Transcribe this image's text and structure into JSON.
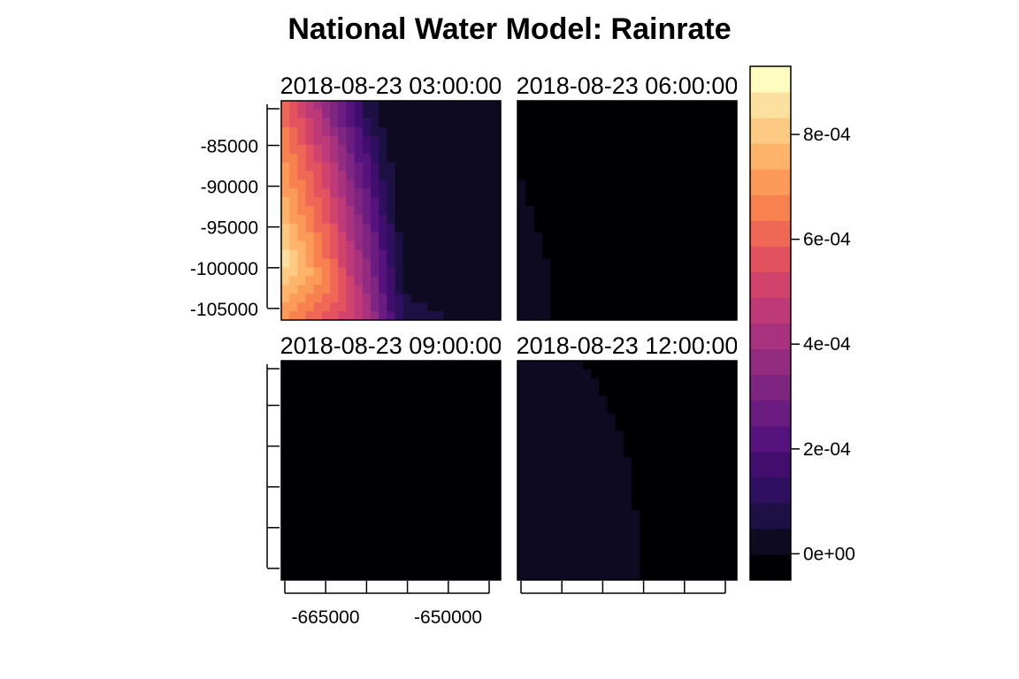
{
  "chart_data": {
    "type": "heatmap",
    "title": "National Water Model: Rainrate",
    "panels": [
      {
        "label": "2018-08-23 03:00:00",
        "visible_label": "018-08-23 03:00:0",
        "grid_levels": [
          [
            13,
            12,
            11,
            10,
            9,
            8,
            7,
            6,
            5,
            4,
            2,
            2,
            1,
            1,
            1,
            1,
            1,
            1,
            1,
            1,
            1,
            1,
            1,
            1,
            1,
            1,
            1
          ],
          [
            13,
            12,
            11,
            10,
            10,
            8,
            7,
            6,
            5,
            4,
            2,
            2,
            1,
            1,
            1,
            1,
            1,
            1,
            1,
            1,
            1,
            1,
            1,
            1,
            1,
            1,
            1
          ],
          [
            13,
            12,
            12,
            11,
            10,
            9,
            7,
            6,
            5,
            4,
            3,
            2,
            1,
            1,
            1,
            1,
            1,
            1,
            1,
            1,
            1,
            1,
            1,
            1,
            1,
            1,
            1
          ],
          [
            14,
            13,
            12,
            11,
            10,
            9,
            8,
            7,
            6,
            5,
            3,
            2,
            2,
            1,
            1,
            1,
            1,
            1,
            1,
            1,
            1,
            1,
            1,
            1,
            1,
            1,
            1
          ],
          [
            14,
            13,
            12,
            11,
            10,
            10,
            9,
            7,
            6,
            5,
            4,
            3,
            2,
            1,
            1,
            1,
            1,
            1,
            1,
            1,
            1,
            1,
            1,
            1,
            1,
            1,
            1
          ],
          [
            14,
            13,
            13,
            12,
            11,
            10,
            9,
            8,
            6,
            5,
            4,
            3,
            2,
            1,
            1,
            1,
            1,
            1,
            1,
            1,
            1,
            1,
            1,
            1,
            1,
            1,
            1
          ],
          [
            14,
            14,
            13,
            12,
            11,
            10,
            9,
            8,
            7,
            5,
            5,
            3,
            2,
            1,
            1,
            1,
            1,
            1,
            1,
            1,
            1,
            1,
            1,
            1,
            1,
            1,
            1
          ],
          [
            15,
            14,
            13,
            12,
            12,
            11,
            10,
            8,
            7,
            6,
            5,
            4,
            2,
            2,
            1,
            1,
            1,
            1,
            1,
            1,
            1,
            1,
            1,
            1,
            1,
            1,
            1
          ],
          [
            15,
            14,
            13,
            13,
            12,
            11,
            10,
            9,
            7,
            6,
            5,
            4,
            2,
            2,
            1,
            1,
            1,
            1,
            1,
            1,
            1,
            1,
            1,
            1,
            1,
            1,
            1
          ],
          [
            15,
            14,
            14,
            13,
            12,
            11,
            10,
            9,
            8,
            6,
            5,
            4,
            3,
            2,
            1,
            1,
            1,
            1,
            1,
            1,
            1,
            1,
            1,
            1,
            1,
            1,
            1
          ],
          [
            15,
            15,
            14,
            13,
            12,
            12,
            10,
            9,
            8,
            7,
            6,
            4,
            3,
            2,
            1,
            1,
            1,
            1,
            1,
            1,
            1,
            1,
            1,
            1,
            1,
            1,
            1
          ],
          [
            16,
            15,
            14,
            13,
            13,
            12,
            11,
            10,
            8,
            7,
            6,
            5,
            3,
            2,
            1,
            1,
            1,
            1,
            1,
            1,
            1,
            1,
            1,
            1,
            1,
            1,
            1
          ],
          [
            16,
            15,
            14,
            14,
            13,
            12,
            11,
            10,
            9,
            7,
            6,
            5,
            3,
            2,
            1,
            1,
            1,
            1,
            1,
            1,
            1,
            1,
            1,
            1,
            1,
            1,
            1
          ],
          [
            16,
            15,
            15,
            14,
            13,
            12,
            11,
            10,
            9,
            8,
            6,
            5,
            4,
            2,
            1,
            1,
            1,
            1,
            1,
            1,
            1,
            1,
            1,
            1,
            1,
            1,
            1
          ],
          [
            17,
            16,
            15,
            14,
            13,
            13,
            12,
            10,
            9,
            8,
            7,
            5,
            4,
            3,
            1,
            1,
            1,
            1,
            1,
            1,
            1,
            1,
            1,
            1,
            1,
            1,
            1
          ],
          [
            17,
            16,
            15,
            15,
            14,
            13,
            12,
            11,
            9,
            8,
            7,
            6,
            4,
            3,
            2,
            1,
            1,
            1,
            1,
            1,
            1,
            1,
            1,
            1,
            1,
            1,
            1
          ],
          [
            17,
            16,
            16,
            15,
            14,
            13,
            12,
            11,
            10,
            8,
            7,
            6,
            4,
            3,
            2,
            1,
            1,
            1,
            1,
            1,
            1,
            1,
            1,
            1,
            1,
            1,
            1
          ],
          [
            18,
            17,
            16,
            15,
            14,
            13,
            12,
            11,
            10,
            9,
            7,
            6,
            5,
            3,
            2,
            1,
            1,
            1,
            1,
            1,
            1,
            1,
            1,
            1,
            1,
            1,
            1
          ],
          [
            18,
            17,
            16,
            15,
            14,
            14,
            13,
            11,
            10,
            9,
            8,
            6,
            5,
            3,
            2,
            1,
            1,
            1,
            1,
            1,
            1,
            1,
            1,
            1,
            1,
            1,
            1
          ],
          [
            17,
            17,
            16,
            16,
            15,
            14,
            13,
            12,
            10,
            9,
            8,
            6,
            5,
            4,
            2,
            1,
            1,
            1,
            1,
            1,
            1,
            1,
            1,
            1,
            1,
            1,
            1
          ],
          [
            17,
            16,
            16,
            15,
            15,
            14,
            13,
            12,
            11,
            9,
            8,
            7,
            5,
            4,
            2,
            1,
            1,
            1,
            1,
            1,
            1,
            1,
            1,
            1,
            1,
            1,
            1
          ],
          [
            16,
            16,
            15,
            15,
            14,
            14,
            13,
            12,
            11,
            10,
            8,
            7,
            5,
            4,
            2,
            1,
            1,
            1,
            1,
            1,
            1,
            1,
            1,
            1,
            1,
            1,
            1
          ],
          [
            16,
            15,
            15,
            14,
            14,
            13,
            13,
            12,
            11,
            10,
            9,
            7,
            6,
            4,
            3,
            2,
            1,
            1,
            1,
            1,
            1,
            1,
            1,
            1,
            1,
            1,
            1
          ],
          [
            15,
            15,
            14,
            14,
            13,
            13,
            12,
            12,
            11,
            10,
            9,
            7,
            6,
            4,
            3,
            2,
            2,
            2,
            1,
            1,
            1,
            1,
            1,
            1,
            1,
            1,
            1
          ],
          [
            15,
            14,
            14,
            13,
            13,
            12,
            12,
            11,
            11,
            10,
            9,
            8,
            6,
            5,
            3,
            2,
            2,
            2,
            2,
            2,
            1,
            1,
            1,
            1,
            1,
            1,
            1
          ]
        ]
      },
      {
        "label": "2018-08-23 06:00:00",
        "visible_label": "018-08-23 06:00:0",
        "light_strip_row_cols": [
          0,
          0,
          0,
          0,
          0,
          0,
          0,
          0,
          0,
          1,
          1,
          1,
          2,
          2,
          2,
          3,
          3,
          3,
          4,
          4,
          4,
          4,
          4,
          4,
          4
        ]
      },
      {
        "label": "2018-08-23 09:00:00",
        "visible_label": "018-08-23 09:00:0"
      },
      {
        "label": "2018-08-23 12:00:00",
        "visible_label": "018-08-23 12:00:0",
        "light_region_row_cols": [
          8,
          9,
          10,
          10,
          11,
          11,
          12,
          12,
          13,
          13,
          13,
          14,
          14,
          14,
          14,
          14,
          14,
          15,
          15,
          15,
          15,
          15,
          15,
          15,
          15
        ]
      }
    ],
    "x_axis": {
      "ticks": [
        -665000,
        -660000,
        -655000,
        -650000,
        -645000,
        -640000
      ],
      "labels": [
        "-665000",
        "-650000"
      ]
    },
    "y_axis": {
      "ticks": [
        -85000,
        -90000,
        -95000,
        -100000,
        -105000
      ],
      "labels": [
        "-85000",
        "-90000",
        "-95000",
        "-100000",
        "-105000"
      ]
    },
    "colorbar": {
      "min": -5e-05,
      "max": 0.00093,
      "ticks": [
        0,
        0.0002,
        0.0004,
        0.0006,
        0.0008
      ],
      "tick_labels": [
        "0e+00",
        "2e-04",
        "4e-04",
        "6e-04",
        "8e-04"
      ],
      "colors": [
        "#000004",
        "#0D0A22",
        "#1C1044",
        "#2F0F60",
        "#420E6E",
        "#56137D",
        "#6A1C80",
        "#7E2481",
        "#932B80",
        "#A8327D",
        "#BD3977",
        "#D0436D",
        "#E2525F",
        "#EF6755",
        "#F7814F",
        "#FB9A59",
        "#FDB36A",
        "#FDCA83",
        "#FCE09F",
        "#FCFDBF"
      ]
    }
  }
}
